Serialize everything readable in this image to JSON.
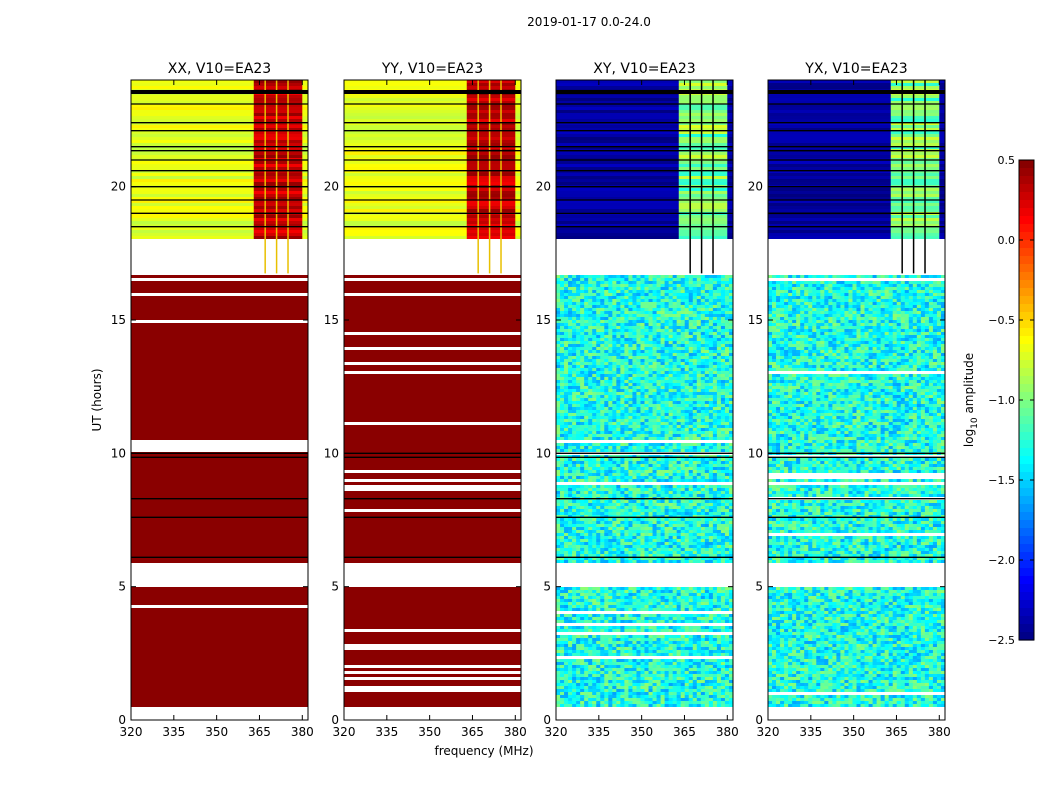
{
  "suptitle": "2019-01-17 0.0-24.0",
  "xlabel": "frequency (MHz)",
  "ylabel": "UT (hours)",
  "colorbar": {
    "label_prefix": "log",
    "label_sub": "10",
    "label_suffix": " amplitude",
    "ticks": [
      "0.5",
      "0.0",
      "−0.5",
      "−1.0",
      "−1.5",
      "−2.0",
      "−2.5"
    ],
    "min": -2.5,
    "max": 0.5,
    "cmap": "jet"
  },
  "chart_data": [
    {
      "type": "heatmap",
      "title": "XX, V10=EA23",
      "xlim": [
        320,
        382
      ],
      "ylim": [
        0,
        24
      ],
      "xticks": [
        320,
        335,
        350,
        365,
        380
      ],
      "yticks": [
        0,
        5,
        10,
        15,
        20
      ],
      "pattern": "parallel"
    },
    {
      "type": "heatmap",
      "title": "YY, V10=EA23",
      "xlim": [
        320,
        382
      ],
      "ylim": [
        0,
        24
      ],
      "xticks": [
        320,
        335,
        350,
        365,
        380
      ],
      "yticks": [
        0,
        5,
        10,
        15,
        20
      ],
      "pattern": "parallel"
    },
    {
      "type": "heatmap",
      "title": "XY, V10=EA23",
      "xlim": [
        320,
        382
      ],
      "ylim": [
        0,
        24
      ],
      "xticks": [
        320,
        335,
        350,
        365,
        380
      ],
      "yticks": [
        0,
        5,
        10,
        15,
        20
      ],
      "pattern": "cross"
    },
    {
      "type": "heatmap",
      "title": "YX, V10=EA23",
      "xlim": [
        320,
        382
      ],
      "ylim": [
        0,
        24
      ],
      "xticks": [
        320,
        335,
        350,
        365,
        380
      ],
      "yticks": [
        0,
        5,
        10,
        15,
        20
      ],
      "pattern": "cross"
    }
  ],
  "structure": {
    "gaps_ut": [
      [
        0.0,
        0.55
      ],
      [
        5.05,
        5.95
      ],
      [
        16.75,
        18.15
      ]
    ],
    "flag_lines_ut": [
      23.55,
      23.1,
      22.4,
      22.1,
      21.5,
      21.35,
      21.0,
      20.6,
      20.0,
      19.5,
      19.0,
      18.5,
      10.0,
      9.85,
      8.3,
      7.6,
      6.1
    ],
    "rfi_band_mhz": [
      363,
      380
    ],
    "rfi_gaps_mhz": [
      367,
      371,
      375
    ],
    "parallel_values": {
      "low_ut_amp": 0.5,
      "high_ut_amp": -0.7,
      "rfi_amp": 0.3
    },
    "cross_values": {
      "low_ut_amp": -1.3,
      "high_ut_amp": -2.4,
      "rfi_amp": -1.0
    }
  }
}
